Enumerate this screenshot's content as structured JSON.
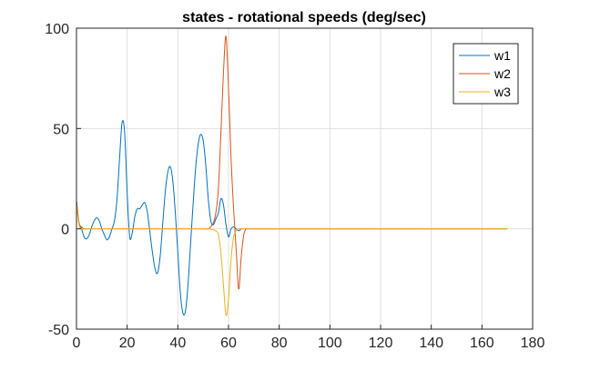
{
  "chart_data": {
    "type": "line",
    "title": "states - rotational speeds (deg/sec)",
    "xlabel": "",
    "ylabel": "",
    "xlim": [
      0,
      180
    ],
    "ylim": [
      -50,
      100
    ],
    "xticks": [
      0,
      20,
      40,
      60,
      80,
      100,
      120,
      140,
      160,
      180
    ],
    "yticks": [
      -50,
      0,
      50,
      100
    ],
    "grid": true,
    "legend_position": "top-right",
    "series": [
      {
        "name": "w1",
        "color": "#0072BD",
        "x": [
          0,
          1,
          2,
          3,
          4,
          5,
          6,
          7,
          8,
          9,
          10,
          11,
          12,
          13,
          14,
          15,
          16,
          17,
          18,
          19,
          20,
          21,
          22,
          23,
          24,
          25,
          26,
          27,
          28,
          29,
          30,
          31,
          32,
          33,
          34,
          35,
          36,
          37,
          38,
          39,
          40,
          41,
          42,
          43,
          44,
          45,
          46,
          47,
          48,
          49,
          50,
          51,
          52,
          53,
          54,
          55,
          56,
          57,
          58,
          59,
          60,
          61,
          62,
          63,
          64,
          65,
          66,
          67,
          68,
          70,
          80,
          100,
          120,
          140,
          160,
          170
        ],
        "y": [
          14,
          3,
          0,
          -4,
          -5,
          -3,
          1,
          4,
          5.5,
          4,
          0,
          -3,
          -5.5,
          -4,
          0,
          4,
          15,
          35,
          53,
          48,
          18,
          -4,
          -2,
          6,
          10,
          10,
          12,
          13,
          8,
          -2,
          -12,
          -20,
          -22,
          -14,
          2,
          18,
          28,
          31,
          24,
          8,
          -12,
          -32,
          -42,
          -41,
          -28,
          -8,
          12,
          30,
          42,
          47,
          44,
          32,
          15,
          4,
          2,
          5,
          8,
          15,
          12,
          2,
          -4,
          0,
          1,
          0,
          -1,
          0,
          0,
          0,
          0,
          0,
          0,
          0,
          0,
          0,
          0,
          0
        ]
      },
      {
        "name": "w2",
        "color": "#D95319",
        "x": [
          0,
          1,
          2,
          3,
          5,
          10,
          20,
          40,
          50,
          52,
          53,
          54,
          55,
          56,
          57,
          58,
          59,
          60,
          61,
          62,
          63,
          64,
          65,
          66,
          67,
          68,
          70,
          80,
          100,
          120,
          140,
          160,
          170
        ],
        "y": [
          14,
          3,
          1,
          0,
          0,
          0,
          0,
          0,
          0,
          0,
          1,
          3,
          8,
          20,
          48,
          78,
          96,
          70,
          35,
          10,
          -10,
          -30,
          -14,
          -3,
          0,
          0,
          0,
          0,
          0,
          0,
          0,
          0,
          0
        ]
      },
      {
        "name": "w3",
        "color": "#EDB120",
        "x": [
          0,
          1,
          2,
          3,
          5,
          10,
          20,
          40,
          50,
          52,
          54,
          55,
          56,
          57,
          58,
          59,
          60,
          61,
          62,
          63,
          64,
          65,
          67,
          70,
          80,
          100,
          120,
          140,
          160,
          170
        ],
        "y": [
          12,
          2,
          0,
          0,
          0,
          0,
          0,
          0,
          0,
          0,
          -0.5,
          -1,
          -3,
          -12,
          -28,
          -43,
          -35,
          -15,
          -4,
          -1,
          0,
          0,
          0,
          0,
          0,
          0,
          0,
          0,
          0,
          0
        ]
      }
    ]
  }
}
